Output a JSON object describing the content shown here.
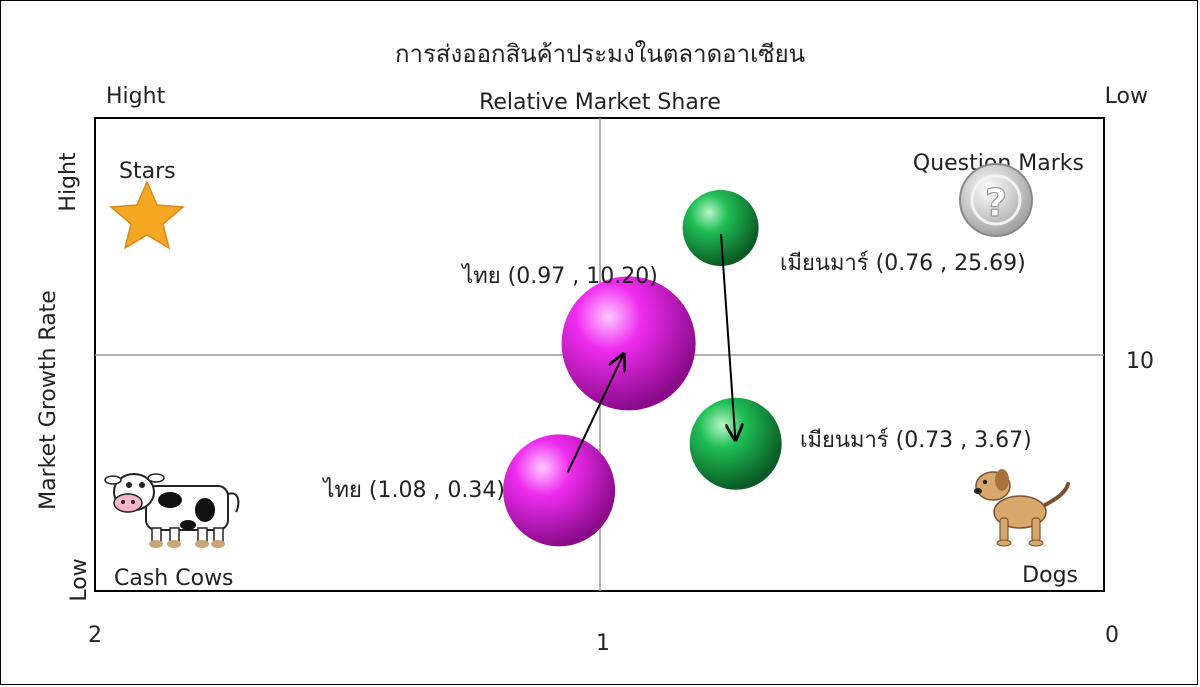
{
  "chart_data": {
    "type": "bubble-bcg-matrix",
    "title": "การส่งออกสินค้าประมงในตลาดอาเซียน",
    "xlabel": "Relative Market Share",
    "ylabel": "Market Growth Rate",
    "x_high_label": "Hight",
    "x_low_label": "Low",
    "y_high_label": "Hight",
    "y_low_label": "Low",
    "x_ticks": [
      "2",
      "1",
      "0"
    ],
    "xlim": [
      2,
      0
    ],
    "y_mid_tick": "10",
    "quadrants": {
      "top_left": "Stars",
      "top_right": "Question Marks",
      "bottom_left": "Cash Cows",
      "bottom_right": "Dogs"
    },
    "series": [
      {
        "color": "#d11ad1",
        "points": [
          {
            "label": "ไทย (1.08 , 0.34)",
            "x": 1.08,
            "y": 0.34
          },
          {
            "label": "ไทย (0.97 , 10.20)",
            "x": 0.97,
            "y": 10.2
          }
        ]
      },
      {
        "color": "#1aa84a",
        "points": [
          {
            "label": "เมียนมาร์ (0.76 , 25.69)",
            "x": 0.76,
            "y": 25.69
          },
          {
            "label": "เมียนมาร์ (0.73 , 3.67)",
            "x": 0.73,
            "y": 3.67
          }
        ]
      }
    ],
    "icons": [
      "star-icon",
      "question-mark-icon",
      "cow-icon",
      "dog-icon"
    ]
  }
}
